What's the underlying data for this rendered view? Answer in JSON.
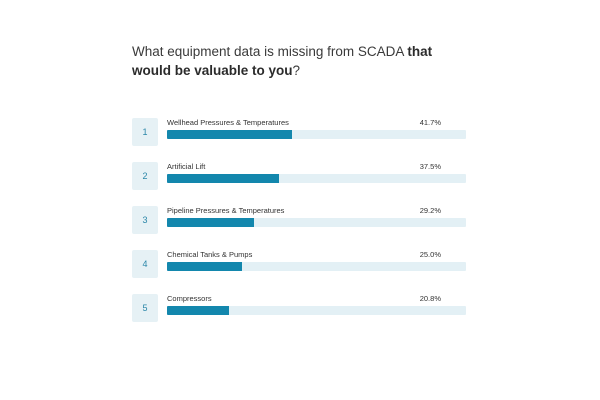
{
  "question": {
    "text_regular": "What equipment data is missing from SCADA ",
    "text_bold": "that would be valuable to you",
    "text_end": "?"
  },
  "chart_data": {
    "type": "bar",
    "orientation": "horizontal",
    "title": "What equipment data is missing from SCADA that would be valuable to you?",
    "categories": [
      "Wellhead Pressures & Temperatures",
      "Artificial Lift",
      "Pipeline Pressures & Temperatures",
      "Chemical Tanks & Pumps",
      "Compressors"
    ],
    "values": [
      41.7,
      37.5,
      29.2,
      25.0,
      20.8
    ],
    "value_labels": [
      "41.7%",
      "37.5%",
      "29.2%",
      "25.0%",
      "20.8%"
    ],
    "ranks": [
      "1",
      "2",
      "3",
      "4",
      "5"
    ],
    "xlim": [
      0,
      100
    ],
    "colors": {
      "bar": "#1387ad",
      "track": "#e3f0f5",
      "rank_bg": "#e6f1f5",
      "rank_text": "#2a86a8"
    }
  }
}
